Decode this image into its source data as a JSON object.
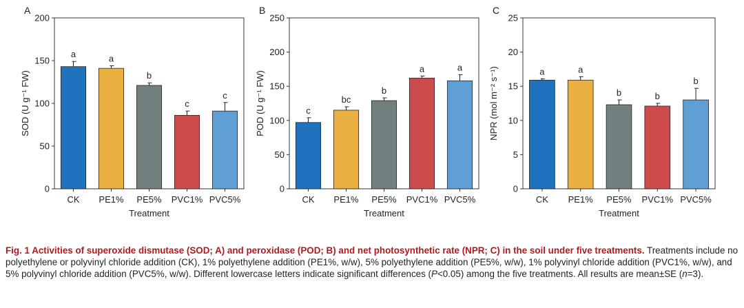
{
  "chart_data": [
    {
      "type": "bar",
      "panel_label": "A",
      "categories": [
        "CK",
        "PE1%",
        "PE5%",
        "PVC1%",
        "PVC5%"
      ],
      "values": [
        143,
        141,
        121,
        86,
        91
      ],
      "errors": [
        6,
        3,
        3,
        5,
        10
      ],
      "letters": [
        "a",
        "a",
        "b",
        "c",
        "c"
      ],
      "colors": [
        "#1f72bd",
        "#ebb042",
        "#717f7f",
        "#cd4b4b",
        "#5f9fd6"
      ],
      "ylabel": "SOD (U g⁻¹ FW)",
      "xlabel": "Treatment",
      "ylim": [
        0,
        200
      ],
      "yticks": [
        0,
        50,
        100,
        150,
        200
      ]
    },
    {
      "type": "bar",
      "panel_label": "B",
      "categories": [
        "CK",
        "PE1%",
        "PE5%",
        "PVC1%",
        "PVC5%"
      ],
      "values": [
        97,
        115,
        129,
        162,
        158
      ],
      "errors": [
        7,
        5,
        4,
        3,
        9
      ],
      "letters": [
        "c",
        "bc",
        "b",
        "a",
        "a"
      ],
      "colors": [
        "#1f72bd",
        "#ebb042",
        "#717f7f",
        "#cd4b4b",
        "#5f9fd6"
      ],
      "ylabel": "POD (U g⁻¹ FW)",
      "xlabel": "Treatment",
      "ylim": [
        0,
        250
      ],
      "yticks": [
        0,
        50,
        100,
        150,
        200,
        250
      ]
    },
    {
      "type": "bar",
      "panel_label": "C",
      "categories": [
        "CK",
        "PE1%",
        "PE5%",
        "PVC1%",
        "PVC5%"
      ],
      "values": [
        15.9,
        15.9,
        12.3,
        12.1,
        13.0
      ],
      "errors": [
        0.2,
        0.5,
        0.7,
        0.4,
        1.7
      ],
      "letters": [
        "a",
        "a",
        "b",
        "b",
        "b"
      ],
      "colors": [
        "#1f72bd",
        "#ebb042",
        "#717f7f",
        "#cd4b4b",
        "#5f9fd6"
      ],
      "ylabel": "NPR (mol m⁻² s⁻¹)",
      "xlabel": "Treatment",
      "ylim": [
        0,
        25
      ],
      "yticks": [
        0,
        5,
        10,
        15,
        20,
        25
      ]
    }
  ],
  "caption": {
    "title": "Fig. 1  Activities of superoxide dismutase (SOD; A) and peroxidase (POD; B) and net photosynthetic rate (NPR; C) in the soil under five treatments.",
    "body_1": "  Treatments include no polyethylene or polyvinyl chloride addition (CK), 1% polyethylene addition (PE1%, w/w), 5% polyethylene addition (PE5%, w/w), 1% polyvinyl chloride addition (PVC1%, w/w), and 5% polyvinyl chloride addition (PVC5%, w/w). Different lowercase letters indicate significant differences (",
    "p_symbol": "P",
    "body_2": "<0.05) among the five treatments.  All results are mean±SE (",
    "n_symbol": "n",
    "body_3": "=3)."
  }
}
